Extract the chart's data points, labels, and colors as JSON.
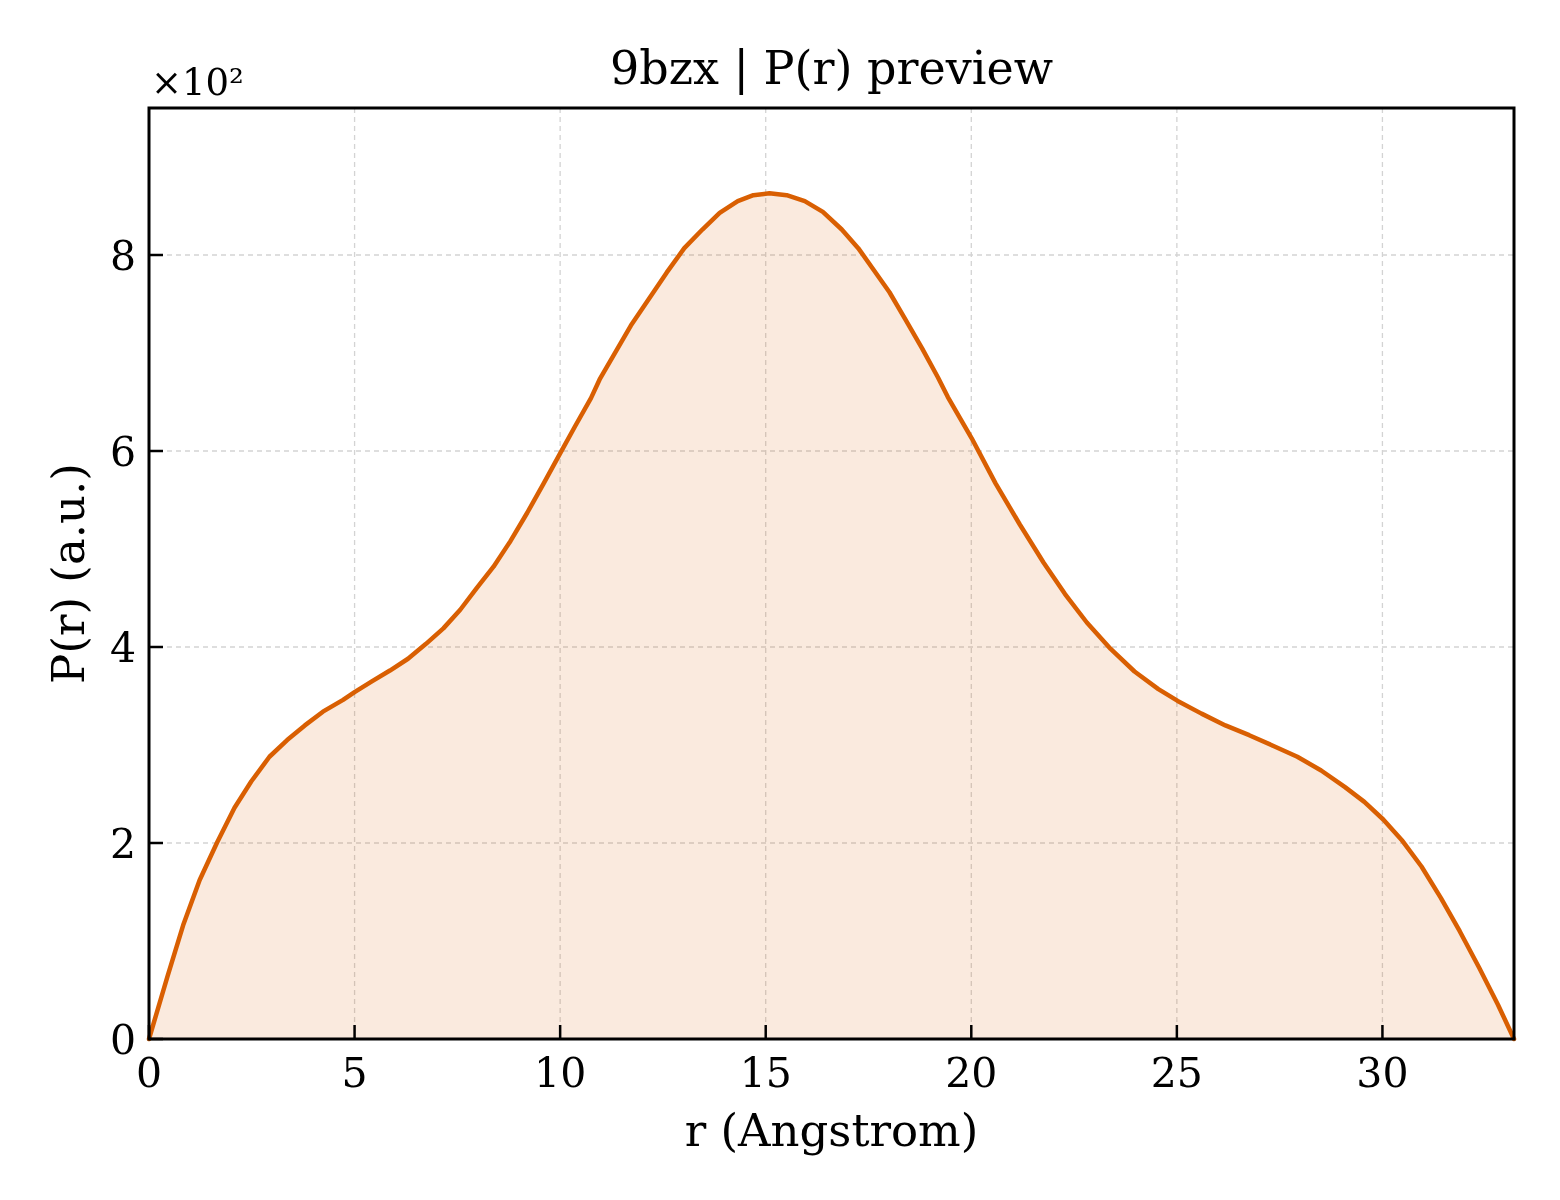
{
  "chart_data": {
    "type": "area",
    "title": "9bzx | P(r) preview",
    "xlabel": "r (Angstrom)",
    "ylabel": "P(r) (a.u.)",
    "annotations": [
      "×10²"
    ],
    "x": [
      0,
      0.45,
      0.83,
      1.23,
      1.65,
      2.08,
      2.49,
      2.93,
      3.36,
      3.79,
      4.23,
      4.72,
      5.0,
      5.42,
      5.86,
      6.3,
      6.73,
      7.16,
      7.57,
      7.97,
      8.38,
      8.79,
      9.2,
      9.6,
      9.98,
      10.36,
      10.75,
      10.96,
      11.72,
      12.59,
      13.02,
      13.46,
      13.88,
      14.32,
      14.7,
      15.09,
      15.51,
      15.95,
      16.39,
      16.85,
      17.25,
      17.64,
      18.01,
      18.4,
      18.8,
      19.19,
      19.43,
      20.01,
      20.59,
      21.18,
      21.76,
      22.28,
      22.81,
      23.39,
      23.97,
      24.55,
      25.02,
      25.6,
      26.18,
      26.76,
      27.35,
      27.93,
      28.51,
      29.09,
      29.56,
      30.02,
      30.49,
      30.95,
      31.42,
      31.88,
      32.35,
      32.81,
      33.2
    ],
    "series": [
      {
        "color": "#d95f02",
        "values": [
          0,
          0.64,
          1.16,
          1.62,
          2.0,
          2.36,
          2.63,
          2.88,
          3.05,
          3.2,
          3.34,
          3.46,
          3.54,
          3.65,
          3.76,
          3.88,
          4.03,
          4.19,
          4.38,
          4.6,
          4.82,
          5.08,
          5.37,
          5.67,
          5.96,
          6.25,
          6.54,
          6.73,
          7.28,
          7.82,
          8.07,
          8.26,
          8.43,
          8.55,
          8.61,
          8.63,
          8.61,
          8.55,
          8.44,
          8.26,
          8.07,
          7.84,
          7.62,
          7.34,
          7.05,
          6.75,
          6.55,
          6.13,
          5.67,
          5.25,
          4.86,
          4.54,
          4.25,
          3.98,
          3.75,
          3.57,
          3.45,
          3.32,
          3.2,
          3.1,
          2.99,
          2.88,
          2.74,
          2.57,
          2.42,
          2.24,
          2.02,
          1.76,
          1.44,
          1.1,
          0.73,
          0.35,
          0
        ]
      }
    ],
    "xlim": [
      0,
      33.2
    ],
    "ylim": [
      0,
      9.5
    ],
    "xticks": [
      0,
      5,
      10,
      15,
      20,
      25,
      30
    ],
    "yticks": [
      0,
      2,
      4,
      6,
      8
    ],
    "grid": true
  }
}
